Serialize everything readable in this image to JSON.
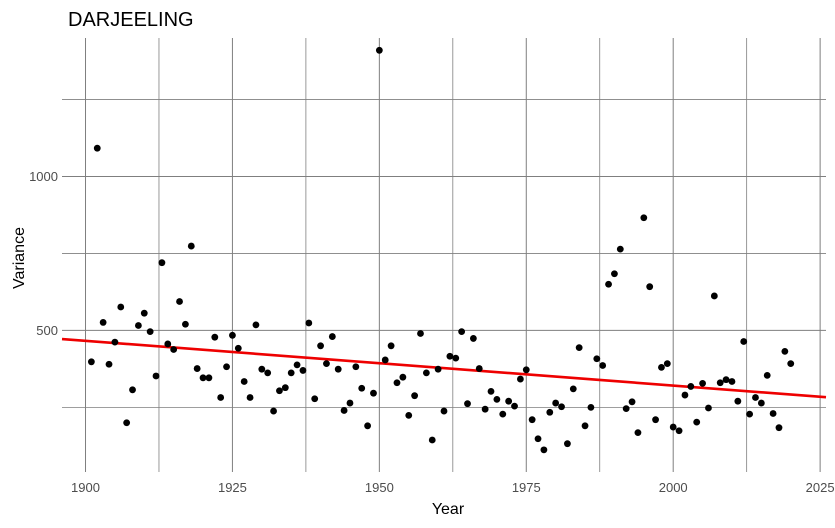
{
  "chart_data": {
    "type": "scatter",
    "title": "DARJEELING",
    "xlabel": "Year",
    "ylabel": "Variance",
    "xlim": [
      1896,
      2026
    ],
    "ylim": [
      40,
      1450
    ],
    "x_ticks": [
      1900,
      1925,
      1950,
      1975,
      2000,
      2025
    ],
    "x_minor_ticks": [
      1912.5,
      1937.5,
      1962.5,
      1987.5,
      2012.5
    ],
    "y_ticks": [
      500,
      1000
    ],
    "y_minor_ticks": [
      250,
      750,
      1250
    ],
    "grid": true,
    "legend": "none",
    "point_color": "#000000",
    "trend_color": "#ee0000",
    "trend_line": {
      "x": [
        1896,
        2026
      ],
      "y": [
        472,
        283
      ]
    },
    "points": [
      [
        1901,
        398
      ],
      [
        1902,
        1092
      ],
      [
        1903,
        526
      ],
      [
        1904,
        390
      ],
      [
        1905,
        462
      ],
      [
        1906,
        576
      ],
      [
        1907,
        200
      ],
      [
        1908,
        307
      ],
      [
        1909,
        516
      ],
      [
        1910,
        556
      ],
      [
        1911,
        496
      ],
      [
        1912,
        352
      ],
      [
        1913,
        720
      ],
      [
        1914,
        456
      ],
      [
        1915,
        438
      ],
      [
        1916,
        594
      ],
      [
        1917,
        520
      ],
      [
        1918,
        774
      ],
      [
        1919,
        376
      ],
      [
        1920,
        346
      ],
      [
        1921,
        346
      ],
      [
        1922,
        478
      ],
      [
        1923,
        282
      ],
      [
        1924,
        382
      ],
      [
        1925,
        484
      ],
      [
        1926,
        442
      ],
      [
        1927,
        334
      ],
      [
        1928,
        282
      ],
      [
        1929,
        518
      ],
      [
        1930,
        374
      ],
      [
        1931,
        362
      ],
      [
        1932,
        238
      ],
      [
        1933,
        304
      ],
      [
        1934,
        314
      ],
      [
        1935,
        362
      ],
      [
        1936,
        388
      ],
      [
        1937,
        370
      ],
      [
        1938,
        524
      ],
      [
        1939,
        278
      ],
      [
        1940,
        450
      ],
      [
        1941,
        392
      ],
      [
        1942,
        480
      ],
      [
        1943,
        374
      ],
      [
        1944,
        240
      ],
      [
        1945,
        264
      ],
      [
        1946,
        382
      ],
      [
        1947,
        312
      ],
      [
        1948,
        190
      ],
      [
        1949,
        296
      ],
      [
        1950,
        1410
      ],
      [
        1951,
        404
      ],
      [
        1952,
        450
      ],
      [
        1953,
        330
      ],
      [
        1954,
        348
      ],
      [
        1955,
        224
      ],
      [
        1956,
        288
      ],
      [
        1957,
        490
      ],
      [
        1958,
        362
      ],
      [
        1959,
        144
      ],
      [
        1960,
        374
      ],
      [
        1961,
        238
      ],
      [
        1962,
        416
      ],
      [
        1963,
        410
      ],
      [
        1964,
        496
      ],
      [
        1965,
        262
      ],
      [
        1966,
        474
      ],
      [
        1967,
        376
      ],
      [
        1968,
        244
      ],
      [
        1969,
        302
      ],
      [
        1970,
        276
      ],
      [
        1971,
        228
      ],
      [
        1972,
        270
      ],
      [
        1973,
        254
      ],
      [
        1974,
        342
      ],
      [
        1975,
        372
      ],
      [
        1976,
        210
      ],
      [
        1977,
        148
      ],
      [
        1978,
        112
      ],
      [
        1979,
        234
      ],
      [
        1980,
        264
      ],
      [
        1981,
        252
      ],
      [
        1982,
        132
      ],
      [
        1983,
        310
      ],
      [
        1984,
        444
      ],
      [
        1985,
        190
      ],
      [
        1986,
        250
      ],
      [
        1987,
        408
      ],
      [
        1988,
        386
      ],
      [
        1989,
        650
      ],
      [
        1990,
        684
      ],
      [
        1991,
        764
      ],
      [
        1992,
        246
      ],
      [
        1993,
        268
      ],
      [
        1994,
        168
      ],
      [
        1995,
        866
      ],
      [
        1996,
        642
      ],
      [
        1997,
        210
      ],
      [
        1998,
        380
      ],
      [
        1999,
        392
      ],
      [
        2000,
        186
      ],
      [
        2001,
        174
      ],
      [
        2002,
        290
      ],
      [
        2003,
        318
      ],
      [
        2004,
        202
      ],
      [
        2005,
        328
      ],
      [
        2006,
        248
      ],
      [
        2007,
        612
      ],
      [
        2008,
        330
      ],
      [
        2009,
        340
      ],
      [
        2010,
        334
      ],
      [
        2011,
        270
      ],
      [
        2012,
        464
      ],
      [
        2013,
        228
      ],
      [
        2014,
        282
      ],
      [
        2015,
        264
      ],
      [
        2016,
        354
      ],
      [
        2017,
        230
      ],
      [
        2018,
        184
      ],
      [
        2019,
        432
      ],
      [
        2020,
        392
      ]
    ]
  }
}
